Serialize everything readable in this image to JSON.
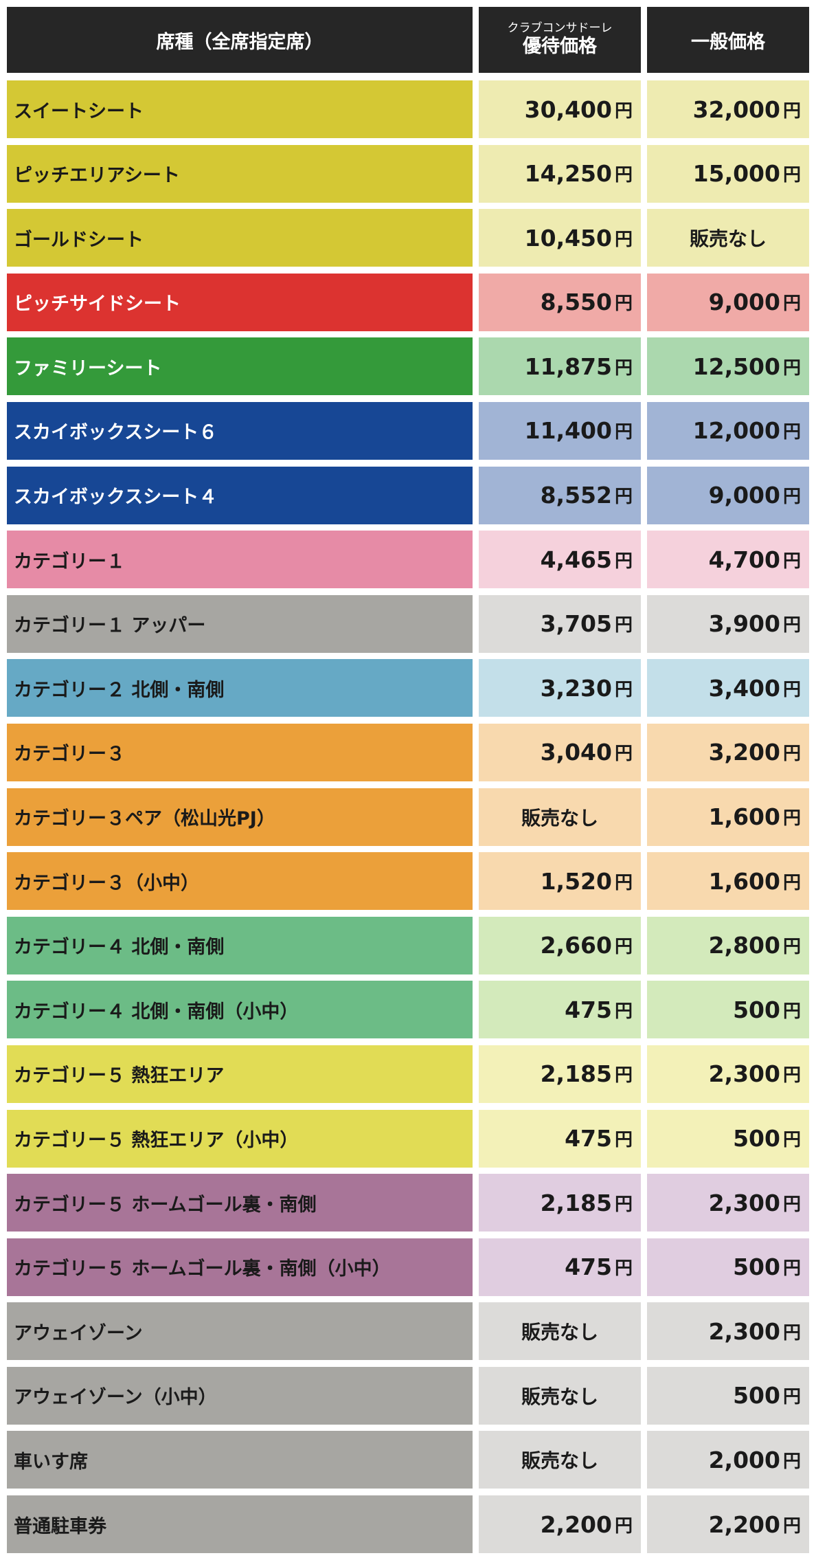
{
  "header": {
    "seat_type": "席種（全席指定席）",
    "member_caption": "クラブコンサドーレ",
    "member_title": "優待価格",
    "general_title": "一般価格"
  },
  "unit": "円",
  "not_for_sale": "販売なし",
  "rows": [
    {
      "seat": "スイートシート",
      "member": "30,400",
      "general": "32,000",
      "seat_color": "#d4c834",
      "price_color": "#eeebb1",
      "light_text": false
    },
    {
      "seat": "ピッチエリアシート",
      "member": "14,250",
      "general": "15,000",
      "seat_color": "#d4c834",
      "price_color": "#eeebb1",
      "light_text": false
    },
    {
      "seat": "ゴールドシート",
      "member": "10,450",
      "general": null,
      "seat_color": "#d4c834",
      "price_color": "#eeebb1",
      "light_text": false
    },
    {
      "seat": "ピッチサイドシート",
      "member": "8,550",
      "general": "9,000",
      "seat_color": "#dc3330",
      "price_color": "#f0aaa7",
      "light_text": true
    },
    {
      "seat": "ファミリーシート",
      "member": "11,875",
      "general": "12,500",
      "seat_color": "#349a3a",
      "price_color": "#abd8ae",
      "light_text": true
    },
    {
      "seat": "スカイボックスシート６",
      "member": "11,400",
      "general": "12,000",
      "seat_color": "#174795",
      "price_color": "#a1b4d5",
      "light_text": true
    },
    {
      "seat": "スカイボックスシート４",
      "member": "8,552",
      "general": "9,000",
      "seat_color": "#174795",
      "price_color": "#a1b4d5",
      "light_text": true
    },
    {
      "seat": "カテゴリー１",
      "member": "4,465",
      "general": "4,700",
      "seat_color": "#e68ba6",
      "price_color": "#f5d1dc",
      "light_text": false
    },
    {
      "seat": "カテゴリー１ アッパー",
      "member": "3,705",
      "general": "3,900",
      "seat_color": "#a7a6a2",
      "price_color": "#dcdbd9",
      "light_text": false
    },
    {
      "seat": "カテゴリー２ 北側・南側",
      "member": "3,230",
      "general": "3,400",
      "seat_color": "#66a9c5",
      "price_color": "#c3dfe9",
      "light_text": false
    },
    {
      "seat": "カテゴリー３",
      "member": "3,040",
      "general": "3,200",
      "seat_color": "#eba03a",
      "price_color": "#f8d9ae",
      "light_text": false
    },
    {
      "seat": "カテゴリー３ペア（松山光PJ）",
      "member": null,
      "general": "1,600",
      "seat_color": "#eba03a",
      "price_color": "#f8d9ae",
      "light_text": false
    },
    {
      "seat": "カテゴリー３（小中）",
      "member": "1,520",
      "general": "1,600",
      "seat_color": "#eba03a",
      "price_color": "#f8d9ae",
      "light_text": false
    },
    {
      "seat": "カテゴリー４ 北側・南側",
      "member": "2,660",
      "general": "2,800",
      "seat_color": "#6cbc86",
      "price_color": "#d3eabb",
      "light_text": false
    },
    {
      "seat": "カテゴリー４ 北側・南側（小中）",
      "member": "475",
      "general": "500",
      "seat_color": "#6cbc86",
      "price_color": "#d3eabb",
      "light_text": false
    },
    {
      "seat": "カテゴリー５ 熱狂エリア",
      "member": "2,185",
      "general": "2,300",
      "seat_color": "#e1dc55",
      "price_color": "#f3f1b8",
      "light_text": false
    },
    {
      "seat": "カテゴリー５ 熱狂エリア（小中）",
      "member": "475",
      "general": "500",
      "seat_color": "#e1dc55",
      "price_color": "#f3f1b8",
      "light_text": false
    },
    {
      "seat": "カテゴリー５ ホームゴール裏・南側",
      "member": "2,185",
      "general": "2,300",
      "seat_color": "#a87598",
      "price_color": "#e0cde0",
      "light_text": false
    },
    {
      "seat": "カテゴリー５ ホームゴール裏・南側（小中）",
      "member": "475",
      "general": "500",
      "seat_color": "#a87598",
      "price_color": "#e0cde0",
      "light_text": false
    },
    {
      "seat": "アウェイゾーン",
      "member": null,
      "general": "2,300",
      "seat_color": "#a7a6a2",
      "price_color": "#dcdbd9",
      "light_text": false
    },
    {
      "seat": "アウェイゾーン（小中）",
      "member": null,
      "general": "500",
      "seat_color": "#a7a6a2",
      "price_color": "#dcdbd9",
      "light_text": false
    },
    {
      "seat": "車いす席",
      "member": null,
      "general": "2,000",
      "seat_color": "#a7a6a2",
      "price_color": "#dcdbd9",
      "light_text": false
    },
    {
      "seat": "普通駐車券",
      "member": "2,200",
      "general": "2,200",
      "seat_color": "#a7a6a2",
      "price_color": "#dcdbd9",
      "light_text": false
    }
  ]
}
